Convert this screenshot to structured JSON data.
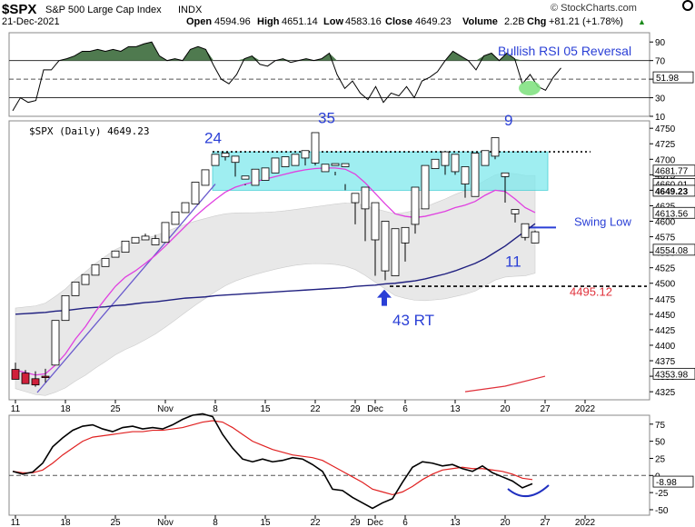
{
  "header": {
    "symbol": "$SPX",
    "name": "S&P 500 Large Cap Index",
    "exchange": "INDX",
    "date": "21-Dec-2021",
    "open_label": "Open",
    "open": "4594.96",
    "high_label": "High",
    "high": "4651.14",
    "low_label": "Low",
    "low": "4583.16",
    "close_label": "Close",
    "close": "4649.23",
    "volume_label": "Volume",
    "volume": "2.2B",
    "chg_label": "Chg",
    "chg": "+81.21 (+1.78%)",
    "chg_arrow": "▲",
    "watermark": "© StockCharts.com"
  },
  "colors": {
    "up": "#ffffff",
    "down": "#d0203b",
    "candle_outline": "#000000",
    "ma_short": "#e040e0",
    "ma_long": "#202080",
    "trend": "#6a5acd",
    "box": "#7fe8ec",
    "band": "#e8e8e8",
    "rsi_fill": "#4f7a4f",
    "annot_blue": "#2a3fd6",
    "annot_red": "#e0303a",
    "macd": "#000000",
    "signal": "#e02020",
    "smile": "#2030c0",
    "rsi_circle": "#7be07b"
  },
  "chart_data": [
    {
      "type": "line",
      "panel": "rsi",
      "ylim": [
        10,
        100
      ],
      "ticks": [
        "90",
        "70",
        "50",
        "30",
        "10"
      ],
      "tick_values": [
        90,
        70,
        50,
        30,
        10
      ],
      "last_value": "51.98",
      "annotation": "Bullish RSI 05 Reversal",
      "series": [
        {
          "values": [
            16,
            30,
            25,
            27,
            60,
            60,
            70,
            72,
            75,
            80,
            80,
            82,
            80,
            82,
            80,
            85,
            85,
            88,
            90,
            75,
            70,
            72,
            70,
            82,
            85,
            82,
            65,
            50,
            45,
            55,
            72,
            75,
            66,
            64,
            70,
            72,
            68,
            70,
            72,
            70,
            72,
            78,
            55,
            40,
            48,
            35,
            28,
            42,
            25,
            35,
            32,
            42,
            30,
            48,
            52,
            58,
            70,
            80,
            75,
            70,
            60,
            75,
            78,
            70,
            78,
            72,
            45,
            55,
            42,
            38,
            52,
            62
          ]
        }
      ]
    },
    {
      "type": "candlestick",
      "panel": "price",
      "title": "$SPX (Daily) 4649.23",
      "ylim": [
        4312,
        4762
      ],
      "y_ticks": [
        "4750",
        "4725",
        "4700",
        "4675",
        "4650",
        "4625",
        "4600",
        "4575",
        "4550",
        "4525",
        "4500",
        "4475",
        "4450",
        "4425",
        "4400",
        "4375",
        "4350",
        "4325"
      ],
      "y_tick_values": [
        4750,
        4725,
        4700,
        4675,
        4650,
        4625,
        4600,
        4575,
        4550,
        4525,
        4500,
        4475,
        4450,
        4425,
        4400,
        4375,
        4350,
        4325
      ],
      "x_tick_labels": [
        {
          "label": "11",
          "i": 0
        },
        {
          "label": "18",
          "i": 5
        },
        {
          "label": "25",
          "i": 10
        },
        {
          "label": "Nov",
          "i": 15
        },
        {
          "label": "8",
          "i": 20
        },
        {
          "label": "15",
          "i": 25
        },
        {
          "label": "22",
          "i": 30
        },
        {
          "label": "29",
          "i": 34
        },
        {
          "label": "Dec",
          "i": 36
        },
        {
          "label": "6",
          "i": 39
        },
        {
          "label": "13",
          "i": 44
        },
        {
          "label": "20",
          "i": 49
        },
        {
          "label": "27",
          "i": 53
        },
        {
          "label": "2022",
          "i": 57
        }
      ],
      "candles": [
        [
          4361,
          4372,
          4355,
          4345
        ],
        [
          4355,
          4360,
          4348,
          4338
        ],
        [
          4346,
          4358,
          4333,
          4336
        ],
        [
          4350,
          4362,
          4340,
          4348
        ],
        [
          4368,
          4372,
          4435,
          4440
        ],
        [
          4440,
          4446,
          4478,
          4480
        ],
        [
          4480,
          4486,
          4500,
          4502
        ],
        [
          4498,
          4504,
          4511,
          4514
        ],
        [
          4513,
          4520,
          4525,
          4530
        ],
        [
          4527,
          4535,
          4535,
          4540
        ],
        [
          4542,
          4546,
          4550,
          4552
        ],
        [
          4550,
          4555,
          4565,
          4568
        ],
        [
          4565,
          4572,
          4568,
          4574
        ],
        [
          4570,
          4580,
          4570,
          4576
        ],
        [
          4562,
          4578,
          4566,
          4572
        ],
        [
          4566,
          4580,
          4595,
          4598
        ],
        [
          4595,
          4603,
          4613,
          4615
        ],
        [
          4614,
          4628,
          4628,
          4630
        ],
        [
          4628,
          4640,
          4660,
          4663
        ],
        [
          4658,
          4678,
          4680,
          4683
        ],
        [
          4690,
          4703,
          4702,
          4708
        ],
        [
          4704,
          4706,
          4698,
          4710
        ],
        [
          4695,
          4701,
          4672,
          4705
        ],
        [
          4668,
          4660,
          4658,
          4673
        ],
        [
          4658,
          4680,
          4664,
          4684
        ],
        [
          4666,
          4680,
          4680,
          4686
        ],
        [
          4678,
          4700,
          4690,
          4702
        ],
        [
          4688,
          4700,
          4688,
          4704
        ],
        [
          4690,
          4700,
          4702,
          4708
        ],
        [
          4702,
          4710,
          4690,
          4714
        ],
        [
          4694,
          4701,
          4690,
          4743
        ],
        [
          4680,
          4690,
          4688,
          4692
        ],
        [
          4690,
          4680,
          4674,
          4693
        ],
        [
          4688,
          4660,
          4650,
          4693
        ],
        [
          4630,
          4640,
          4595,
          4645
        ],
        [
          4620,
          4650,
          4568,
          4655
        ],
        [
          4570,
          4625,
          4512,
          4630
        ],
        [
          4520,
          4595,
          4505,
          4600
        ],
        [
          4512,
          4585,
          4515,
          4588
        ],
        [
          4565,
          4578,
          4535,
          4590
        ],
        [
          4595,
          4650,
          4580,
          4655
        ],
        [
          4620,
          4680,
          4635,
          4690
        ],
        [
          4685,
          4690,
          4685,
          4700
        ],
        [
          4690,
          4700,
          4675,
          4712
        ],
        [
          4680,
          4700,
          4675,
          4708
        ],
        [
          4660,
          4680,
          4638,
          4688
        ],
        [
          4640,
          4685,
          4640,
          4710
        ],
        [
          4690,
          4710,
          4710,
          4714
        ],
        [
          4705,
          4732,
          4700,
          4735
        ],
        [
          4672,
          4675,
          4630,
          4678
        ],
        [
          4612,
          4615,
          4598,
          4619
        ],
        [
          4574,
          4590,
          4569,
          4596
        ],
        [
          4565,
          4585,
          4570,
          4583
        ]
      ],
      "candle_fields": [
        "open",
        "high",
        "low",
        "close"
      ],
      "ma_short": [
        4360,
        4356,
        4352,
        4354,
        4368,
        4386,
        4410,
        4430,
        4454,
        4475,
        4495,
        4510,
        4520,
        4532,
        4545,
        4560,
        4576,
        4592,
        4608,
        4622,
        4635,
        4647,
        4655,
        4660,
        4664,
        4668,
        4672,
        4676,
        4680,
        4683,
        4685,
        4686,
        4686,
        4684,
        4676,
        4662,
        4645,
        4628,
        4612,
        4608,
        4606,
        4608,
        4612,
        4616,
        4622,
        4626,
        4632,
        4642,
        4650,
        4648,
        4636,
        4622,
        4614
      ],
      "ma_long": [
        4450,
        4451,
        4452,
        4453,
        4455,
        4456,
        4458,
        4460,
        4461,
        4462,
        4464,
        4465,
        4467,
        4469,
        4470,
        4472,
        4474,
        4476,
        4477,
        4478,
        4480,
        4481,
        4482,
        4483,
        4484,
        4485,
        4486,
        4487,
        4488,
        4489,
        4490,
        4491,
        4492,
        4493,
        4495,
        4496,
        4497,
        4499,
        4500,
        4502,
        4504,
        4507,
        4511,
        4515,
        4520,
        4526,
        4532,
        4540,
        4550,
        4560,
        4572,
        4584,
        4596
      ],
      "box": {
        "i0": 20,
        "i1": 53,
        "y0": 4712,
        "y1": 4650
      },
      "resistance_level": 4712,
      "support_level": 4495.12,
      "support_label": "4495.12",
      "swing_low_level": 4590,
      "labels": {
        "n24": "24",
        "n35": "35",
        "n9": "9",
        "n11": "11",
        "rt": "43 RT",
        "swing": "Swing Low"
      },
      "right_values": [
        {
          "label": "4681.77",
          "v": 4681.77
        },
        {
          "label": "4660.01",
          "v": 4660.01
        },
        {
          "label": "4649.23",
          "v": 4649.23,
          "bold": true
        },
        {
          "label": "4613.56",
          "v": 4613.56
        },
        {
          "label": "4554.08",
          "v": 4554.08
        },
        {
          "label": "4353.98",
          "v": 4353.98
        }
      ]
    },
    {
      "type": "line",
      "panel": "macd",
      "ylim": [
        -58,
        88
      ],
      "ticks": [
        "75",
        "50",
        "25",
        "0",
        "-25",
        "-50"
      ],
      "tick_values": [
        75,
        50,
        25,
        0,
        -25,
        -50
      ],
      "last_value": "-8.98",
      "series": [
        {
          "values": [
            6,
            2,
            5,
            18,
            42,
            55,
            66,
            72,
            74,
            68,
            64,
            70,
            72,
            68,
            70,
            68,
            74,
            82,
            88,
            90,
            86,
            60,
            40,
            24,
            20,
            24,
            20,
            22,
            26,
            24,
            16,
            6,
            -20,
            -22,
            -32,
            -40,
            -48,
            -40,
            -34,
            -10,
            12,
            20,
            18,
            14,
            16,
            10,
            6,
            14,
            4,
            -2,
            -8,
            -18,
            -12
          ]
        },
        {
          "values": [
            6,
            4,
            4,
            8,
            18,
            30,
            40,
            50,
            56,
            58,
            60,
            62,
            64,
            64,
            66,
            66,
            68,
            70,
            74,
            78,
            80,
            78,
            70,
            60,
            50,
            44,
            38,
            34,
            30,
            28,
            26,
            22,
            14,
            6,
            -2,
            -10,
            -20,
            -24,
            -28,
            -24,
            -16,
            -6,
            2,
            8,
            10,
            12,
            10,
            10,
            8,
            6,
            2,
            -4,
            -6
          ]
        }
      ]
    }
  ]
}
